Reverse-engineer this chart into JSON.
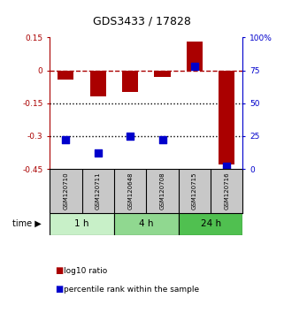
{
  "title": "GDS3433 / 17828",
  "samples": [
    "GSM120710",
    "GSM120711",
    "GSM120648",
    "GSM120708",
    "GSM120715",
    "GSM120716"
  ],
  "log10_ratio": [
    -0.04,
    -0.12,
    -0.1,
    -0.03,
    0.13,
    -0.43
  ],
  "percentile_rank": [
    22,
    12,
    25,
    22,
    78,
    2
  ],
  "time_groups": [
    {
      "label": "1 h",
      "indices": [
        0,
        1
      ],
      "color": "#c8f0c8"
    },
    {
      "label": "4 h",
      "indices": [
        2,
        3
      ],
      "color": "#90d890"
    },
    {
      "label": "24 h",
      "indices": [
        4,
        5
      ],
      "color": "#50c050"
    }
  ],
  "ylim_left": [
    -0.45,
    0.15
  ],
  "ylim_right": [
    0,
    100
  ],
  "yticks_left": [
    0.15,
    0.0,
    -0.15,
    -0.3,
    -0.45
  ],
  "ytick_left_labels": [
    "0.15",
    "0",
    "-0.15",
    "-0.3",
    "-0.45"
  ],
  "yticks_right": [
    100,
    75,
    50,
    25,
    0
  ],
  "ytick_right_labels": [
    "100%",
    "75",
    "50",
    "25",
    "0"
  ],
  "bar_color": "#aa0000",
  "dot_color": "#0000cc",
  "hlines_dotted": [
    -0.15,
    -0.3
  ],
  "label_bg_color": "#c8c8c8",
  "background_color": "#ffffff",
  "legend_red_label": "log10 ratio",
  "legend_blue_label": "percentile rank within the sample",
  "time_label": "time",
  "bar_width": 0.5,
  "dot_size": 28
}
